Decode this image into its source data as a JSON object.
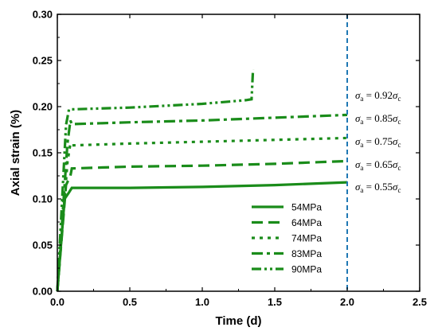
{
  "chart_data": {
    "type": "line",
    "xlabel": "Time (d)",
    "ylabel": "Axial strain (%)",
    "xlim": [
      0.0,
      2.5
    ],
    "ylim": [
      0.0,
      0.3
    ],
    "xticks": [
      "0.0",
      "0.5",
      "1.0",
      "1.5",
      "2.0",
      "2.5"
    ],
    "yticks": [
      "0.00",
      "0.05",
      "0.10",
      "0.15",
      "0.20",
      "0.25",
      "0.30"
    ],
    "grid": false,
    "legend_position": "bottom-right",
    "series_color": "#1a8c1a",
    "reference_line": {
      "x": 2.0,
      "color": "#1f78b4",
      "style": "dashed"
    },
    "series": [
      {
        "name": "54MPa",
        "dash": "solid",
        "points": [
          [
            0.0,
            0.0
          ],
          [
            0.05,
            0.1
          ],
          [
            0.08,
            0.107
          ],
          [
            0.1,
            0.112
          ],
          [
            0.5,
            0.112
          ],
          [
            1.0,
            0.113
          ],
          [
            1.5,
            0.115
          ],
          [
            2.0,
            0.118
          ]
        ]
      },
      {
        "name": "64MPa",
        "dash": "dash",
        "points": [
          [
            0.0,
            0.0
          ],
          [
            0.06,
            0.115
          ],
          [
            0.09,
            0.125
          ],
          [
            0.1,
            0.133
          ],
          [
            0.5,
            0.135
          ],
          [
            1.0,
            0.136
          ],
          [
            1.5,
            0.138
          ],
          [
            2.0,
            0.141
          ]
        ]
      },
      {
        "name": "74MPa",
        "dash": "dot",
        "points": [
          [
            0.0,
            0.0
          ],
          [
            0.07,
            0.14
          ],
          [
            0.09,
            0.16
          ],
          [
            0.1,
            0.158
          ],
          [
            0.5,
            0.16
          ],
          [
            1.0,
            0.162
          ],
          [
            1.5,
            0.164
          ],
          [
            2.0,
            0.166
          ]
        ]
      },
      {
        "name": "83MPa",
        "dash": "dashdot",
        "points": [
          [
            0.0,
            0.0
          ],
          [
            0.07,
            0.16
          ],
          [
            0.09,
            0.185
          ],
          [
            0.1,
            0.181
          ],
          [
            0.5,
            0.183
          ],
          [
            1.0,
            0.185
          ],
          [
            1.5,
            0.188
          ],
          [
            2.0,
            0.191
          ]
        ]
      },
      {
        "name": "90MPa",
        "dash": "dashdotdot",
        "points": [
          [
            0.0,
            0.0
          ],
          [
            0.06,
            0.18
          ],
          [
            0.08,
            0.197
          ],
          [
            0.5,
            0.199
          ],
          [
            1.0,
            0.203
          ],
          [
            1.3,
            0.207
          ],
          [
            1.34,
            0.208
          ],
          [
            1.35,
            0.24
          ]
        ]
      }
    ],
    "annotations": [
      {
        "text": "σa = 0.92σc",
        "y": 0.212
      },
      {
        "text": "σa = 0.85σc",
        "y": 0.187
      },
      {
        "text": "σa = 0.75σc",
        "y": 0.162
      },
      {
        "text": "σa = 0.65σc",
        "y": 0.137
      },
      {
        "text": "σa = 0.55σc",
        "y": 0.113
      }
    ]
  }
}
